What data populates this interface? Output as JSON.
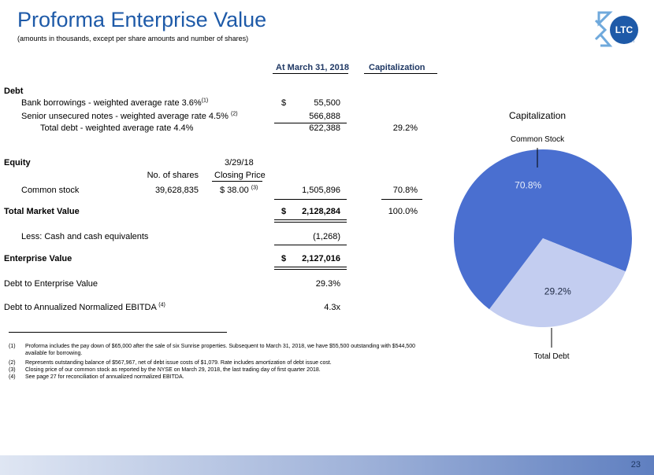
{
  "title": "Proforma Enterprise Value",
  "subtitle": "(amounts in thousands, except per share amounts and number of shares)",
  "logo": {
    "text": "LTC",
    "subtext": "REIT"
  },
  "table": {
    "col_headers": {
      "at_date": "At March 31, 2018",
      "capitalization": "Capitalization"
    },
    "debt": {
      "heading": "Debt",
      "bank_label": "Bank borrowings - weighted average rate 3.6%",
      "bank_note": "(1)",
      "bank_dollar": "$",
      "bank_value": "55,500",
      "notes_label": "Senior unsecured notes - weighted average rate 4.5%",
      "notes_note": "(2)",
      "notes_value": "566,888",
      "total_label": "Total debt - weighted average rate 4.4%",
      "total_value": "622,388",
      "total_cap": "29.2%"
    },
    "equity": {
      "heading": "Equity",
      "date_label": "3/29/18",
      "shares_header": "No. of shares",
      "price_header": "Closing Price",
      "common_label": "Common stock",
      "shares": "39,628,835",
      "price": "$  38.00",
      "price_note": "(3)",
      "value": "1,505,896",
      "cap": "70.8%"
    },
    "total_market": {
      "label": "Total Market Value",
      "dollar": "$",
      "value": "2,128,284",
      "cap": "100.0%"
    },
    "less_cash": {
      "label": "Less:  Cash and cash equivalents",
      "value": "(1,268)"
    },
    "enterprise": {
      "label": "Enterprise Value",
      "dollar": "$",
      "value": "2,127,016"
    },
    "debt_to_ev": {
      "label": "Debt to Enterprise Value",
      "value": "29.3%"
    },
    "debt_to_ebitda": {
      "label": "Debt to Annualized Normalized EBITDA",
      "note": "(4)",
      "value": "4.3x"
    }
  },
  "footnotes": [
    {
      "num": "(1)",
      "text": "Proforma includes the pay down of $65,000 after the sale of six Sunrise properties.  Subsequent to March 31, 2018, we have $55,500 outstanding with $544,500 available for borrowing."
    },
    {
      "num": "(2)",
      "text": "Represents outstanding balance of $567,967, net of debt issue costs of $1,079.  Rate includes amortization of debt issue cost."
    },
    {
      "num": "(3)",
      "text": "Closing price of our common stock as reported by the NYSE on March 29, 2018, the last trading day of first quarter 2018."
    },
    {
      "num": "(4)",
      "text": "See page 27 for reconciliation of annualized normalized EBITDA."
    }
  ],
  "page_number": "23",
  "chart_data": {
    "type": "pie",
    "title": "Capitalization",
    "slices": [
      {
        "label": "Common Stock",
        "value": 70.8,
        "display": "70.8%",
        "color": "#4a6fd0"
      },
      {
        "label": "Total Debt",
        "value": 29.2,
        "display": "29.2%",
        "color": "#c3cdf0"
      }
    ]
  }
}
